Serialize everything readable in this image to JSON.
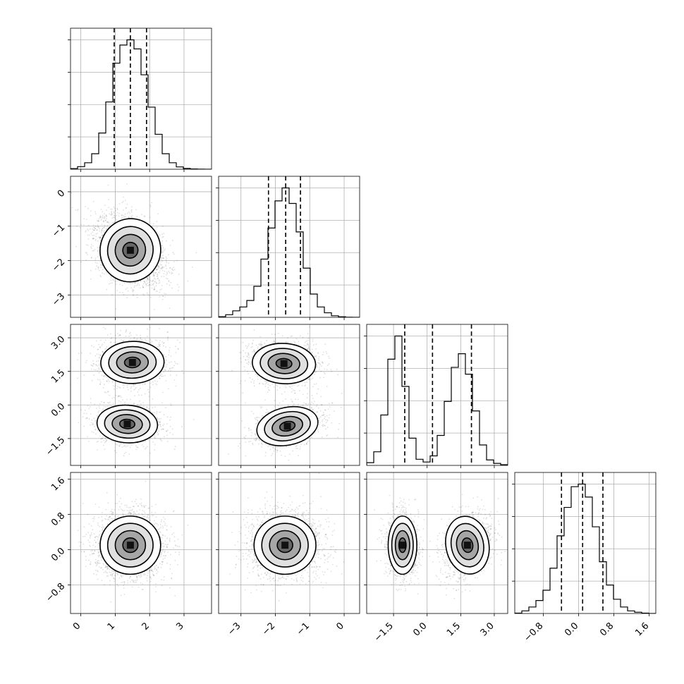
{
  "chart_data": {
    "type": "corner",
    "parameters": [
      {
        "index": 0,
        "label": "",
        "range": [
          -0.3,
          3.8
        ],
        "ticks": [
          0,
          1,
          2,
          3
        ],
        "tick_labels": [
          "0",
          "1",
          "2",
          "3"
        ],
        "quantiles": [
          0.97,
          1.44,
          1.91
        ],
        "histogram": {
          "bin_edges": [
            -0.3,
            -0.095,
            0.11,
            0.315,
            0.52,
            0.725,
            0.93,
            1.135,
            1.34,
            1.545,
            1.75,
            1.955,
            2.16,
            2.365,
            2.57,
            2.775,
            2.98,
            3.185,
            3.39,
            3.595,
            3.8
          ],
          "counts": [
            0.005,
            0.02,
            0.05,
            0.12,
            0.28,
            0.52,
            0.82,
            0.96,
            1.0,
            0.93,
            0.73,
            0.48,
            0.27,
            0.12,
            0.05,
            0.018,
            0.006,
            0.002,
            0.001,
            0.0
          ]
        }
      },
      {
        "index": 1,
        "label": "",
        "range": [
          -3.65,
          0.45
        ],
        "ticks": [
          -3,
          -2,
          -1,
          0
        ],
        "tick_labels": [
          "−3",
          "−2",
          "−1",
          "0"
        ],
        "quantiles": [
          -2.2,
          -1.7,
          -1.27
        ],
        "histogram": {
          "bin_edges": [
            -3.65,
            -3.445,
            -3.24,
            -3.035,
            -2.83,
            -2.625,
            -2.42,
            -2.215,
            -2.01,
            -1.805,
            -1.6,
            -1.395,
            -1.19,
            -0.985,
            -0.78,
            -0.575,
            -0.37,
            -0.165,
            0.04,
            0.245,
            0.45
          ],
          "counts": [
            0.005,
            0.02,
            0.05,
            0.08,
            0.13,
            0.24,
            0.45,
            0.69,
            0.9,
            1.0,
            0.88,
            0.66,
            0.38,
            0.18,
            0.08,
            0.035,
            0.012,
            0.004,
            0.001,
            0.0
          ]
        }
      },
      {
        "index": 2,
        "label": "",
        "range": [
          -2.7,
          3.6
        ],
        "ticks": [
          -1.5,
          0.0,
          1.5,
          3.0
        ],
        "tick_labels": [
          "−1.5",
          "0.0",
          "1.5",
          "3.0"
        ],
        "quantiles": [
          -1.0,
          0.24,
          1.98
        ],
        "histogram": {
          "bin_edges": [
            -2.7,
            -2.385,
            -2.07,
            -1.755,
            -1.44,
            -1.125,
            -0.81,
            -0.495,
            -0.18,
            0.135,
            0.45,
            0.765,
            1.08,
            1.395,
            1.71,
            2.025,
            2.34,
            2.655,
            2.97,
            3.285,
            3.6
          ],
          "counts": [
            0.02,
            0.1,
            0.37,
            0.78,
            0.95,
            0.58,
            0.2,
            0.045,
            0.025,
            0.07,
            0.22,
            0.47,
            0.72,
            0.82,
            0.67,
            0.4,
            0.15,
            0.04,
            0.015,
            0.005
          ]
        }
      },
      {
        "index": 3,
        "label": "",
        "range": [
          -1.45,
          1.75
        ],
        "ticks": [
          -0.8,
          0.0,
          0.8,
          1.6
        ],
        "tick_labels": [
          "−0.8",
          "0.0",
          "0.8",
          "1.6"
        ],
        "quantiles": [
          -0.39,
          0.09,
          0.55
        ],
        "histogram": {
          "bin_edges": [
            -1.45,
            -1.29,
            -1.13,
            -0.97,
            -0.81,
            -0.65,
            -0.49,
            -0.33,
            -0.17,
            -0.01,
            0.15,
            0.31,
            0.47,
            0.63,
            0.79,
            0.95,
            1.11,
            1.27,
            1.43,
            1.59,
            1.75
          ],
          "counts": [
            0.003,
            0.02,
            0.05,
            0.1,
            0.18,
            0.35,
            0.6,
            0.82,
            0.98,
            1.0,
            0.9,
            0.67,
            0.4,
            0.22,
            0.11,
            0.05,
            0.02,
            0.01,
            0.003,
            0.0
          ]
        }
      }
    ],
    "pair_densities": [
      {
        "x": 0,
        "y": 1,
        "components": [
          {
            "weight": 1.0,
            "mean": [
              1.44,
              -1.7
            ],
            "sd": [
              0.44,
              0.46
            ],
            "rho": -0.35
          }
        ]
      },
      {
        "x": 0,
        "y": 2,
        "components": [
          {
            "weight": 0.5,
            "mean": [
              1.5,
              1.9
            ],
            "sd": [
              0.46,
              0.47
            ],
            "rho": 0.05
          },
          {
            "weight": 0.5,
            "mean": [
              1.35,
              -0.85
            ],
            "sd": [
              0.44,
              0.42
            ],
            "rho": -0.1
          }
        ]
      },
      {
        "x": 1,
        "y": 2,
        "components": [
          {
            "weight": 0.5,
            "mean": [
              -1.75,
              1.85
            ],
            "sd": [
              0.46,
              0.45
            ],
            "rho": -0.1
          },
          {
            "weight": 0.5,
            "mean": [
              -1.65,
              -0.95
            ],
            "sd": [
              0.45,
              0.42
            ],
            "rho": 0.35
          }
        ]
      },
      {
        "x": 0,
        "y": 3,
        "components": [
          {
            "weight": 1.0,
            "mean": [
              1.44,
              0.1
            ],
            "sd": [
              0.44,
              0.33
            ],
            "rho": 0.0
          }
        ]
      },
      {
        "x": 1,
        "y": 3,
        "components": [
          {
            "weight": 1.0,
            "mean": [
              -1.72,
              0.1
            ],
            "sd": [
              0.45,
              0.33
            ],
            "rho": 0.0
          }
        ]
      },
      {
        "x": 2,
        "y": 3,
        "components": [
          {
            "weight": 0.5,
            "mean": [
              -1.1,
              0.1
            ],
            "sd": [
              0.32,
              0.33
            ],
            "rho": 0.0
          },
          {
            "weight": 0.5,
            "mean": [
              1.8,
              0.1
            ],
            "sd": [
              0.48,
              0.33
            ],
            "rho": 0.3
          }
        ]
      }
    ],
    "contour_levels_sigma": [
      0.5,
      1.0,
      1.5,
      2.0
    ],
    "grid": true,
    "quantile_line_style": "dashed",
    "colors": {
      "ink": "#000000",
      "grid": "#b0b0b0",
      "background": "#ffffff"
    }
  }
}
